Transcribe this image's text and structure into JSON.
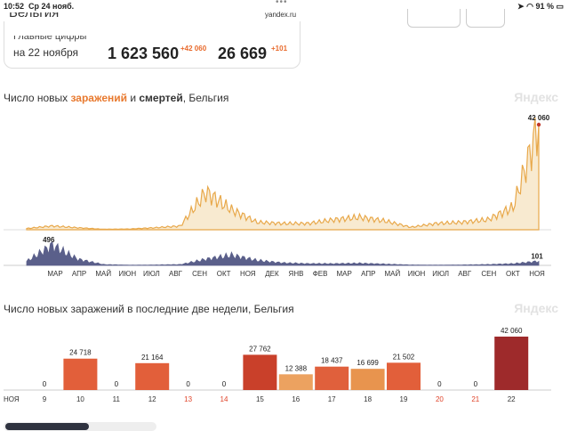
{
  "status": {
    "time": "10:52",
    "date": "Ср 24 нояб.",
    "url": "yandex.ru",
    "battery": "91 %"
  },
  "header": {
    "country": "Бельгия"
  },
  "stats": {
    "label_line1": "Главные цифры",
    "label_line2": "на 22 ноября",
    "cases": "1 623 560",
    "cases_delta": "+42 060",
    "deaths": "26 669",
    "deaths_delta": "+101"
  },
  "chart1": {
    "title_a": "Число новых ",
    "title_b": "заражений",
    "title_c": " и ",
    "title_d": "смертей",
    "title_e": ", Бельгия",
    "watermark": "Яндекс",
    "peak_label": "42 060",
    "deaths_peak_label": "496",
    "deaths_last_label": "101",
    "months": [
      "МАР",
      "АПР",
      "МАЙ",
      "ИЮН",
      "ИЮЛ",
      "АВГ",
      "СЕН",
      "ОКТ",
      "НОЯ",
      "ДЕК",
      "ЯНВ",
      "ФЕВ",
      "МАР",
      "АПР",
      "МАЙ",
      "ИЮН",
      "ИЮЛ",
      "АВГ",
      "СЕН",
      "ОКТ",
      "НОЯ"
    ]
  },
  "chart2": {
    "title": "Число новых заражений в последние две недели, Бельгия",
    "watermark": "Яндекс",
    "month_label": "НОЯ"
  },
  "colors": {
    "cases": "#e8a84a",
    "deaths": "#5a5f8a",
    "weekend": "#e0442a"
  },
  "chart_data": [
    {
      "type": "area",
      "series": [
        {
          "name": "заражений",
          "x": [
            "2020-03",
            "2020-04",
            "2020-05",
            "2020-06",
            "2020-07",
            "2020-08",
            "2020-09",
            "2020-10",
            "2020-11",
            "2020-12",
            "2021-01",
            "2021-02",
            "2021-03",
            "2021-04",
            "2021-05",
            "2021-06",
            "2021-07",
            "2021-08",
            "2021-09",
            "2021-10",
            "2021-11"
          ],
          "values": [
            500,
            1500,
            800,
            200,
            300,
            800,
            1500,
            15000,
            8000,
            3000,
            2500,
            2500,
            4000,
            5000,
            3500,
            1000,
            2500,
            3000,
            4000,
            9000,
            42060
          ]
        },
        {
          "name": "смертей",
          "x": [
            "2020-03",
            "2020-04",
            "2020-05",
            "2020-06",
            "2020-07",
            "2020-08",
            "2020-09",
            "2020-10",
            "2020-11",
            "2020-12",
            "2021-01",
            "2021-02",
            "2021-03",
            "2021-04",
            "2021-05",
            "2021-06",
            "2021-07",
            "2021-08",
            "2021-09",
            "2021-10",
            "2021-11"
          ],
          "values": [
            100,
            496,
            150,
            20,
            5,
            10,
            20,
            150,
            250,
            120,
            60,
            40,
            40,
            50,
            30,
            10,
            5,
            10,
            20,
            40,
            101
          ]
        }
      ]
    },
    {
      "type": "bar",
      "title": "Число новых заражений в последние две недели, Бельгия",
      "categories": [
        "9",
        "10",
        "11",
        "12",
        "13",
        "14",
        "15",
        "16",
        "17",
        "18",
        "19",
        "20",
        "21",
        "22"
      ],
      "values": [
        0,
        24718,
        0,
        21164,
        0,
        0,
        27762,
        12388,
        18437,
        16699,
        21502,
        0,
        0,
        42060
      ],
      "weekend": [
        false,
        false,
        false,
        false,
        true,
        true,
        false,
        false,
        false,
        false,
        false,
        true,
        true,
        false
      ],
      "labels": [
        "0",
        "24 718",
        "0",
        "21 164",
        "0",
        "0",
        "27 762",
        "12 388",
        "18 437",
        "16 699",
        "21 502",
        "0",
        "0",
        "42 060"
      ],
      "bar_colors": [
        "#e25f3a",
        "#e25f3a",
        "#e25f3a",
        "#e25f3a",
        "#e25f3a",
        "#e25f3a",
        "#c9402a",
        "#eca260",
        "#e0603c",
        "#e8944e",
        "#e25f3a",
        "#e25f3a",
        "#e25f3a",
        "#9e2a2b"
      ]
    }
  ]
}
